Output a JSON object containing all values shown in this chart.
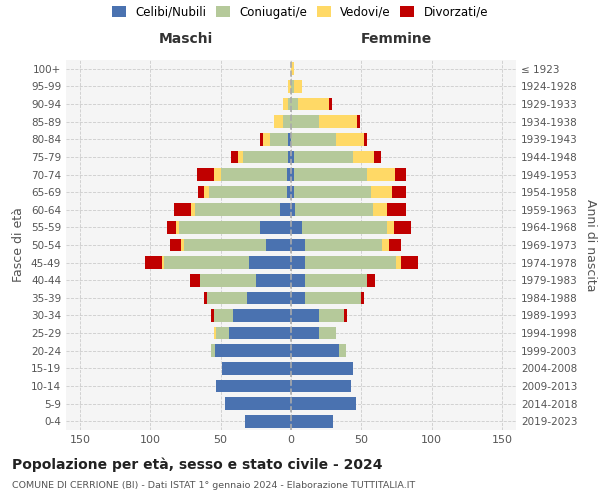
{
  "age_groups": [
    "0-4",
    "5-9",
    "10-14",
    "15-19",
    "20-24",
    "25-29",
    "30-34",
    "35-39",
    "40-44",
    "45-49",
    "50-54",
    "55-59",
    "60-64",
    "65-69",
    "70-74",
    "75-79",
    "80-84",
    "85-89",
    "90-94",
    "95-99",
    "100+"
  ],
  "birth_years": [
    "2019-2023",
    "2014-2018",
    "2009-2013",
    "2004-2008",
    "1999-2003",
    "1994-1998",
    "1989-1993",
    "1984-1988",
    "1979-1983",
    "1974-1978",
    "1969-1973",
    "1964-1968",
    "1959-1963",
    "1954-1958",
    "1949-1953",
    "1944-1948",
    "1939-1943",
    "1934-1938",
    "1929-1933",
    "1924-1928",
    "≤ 1923"
  ],
  "colors": {
    "celibe": "#4a72b0",
    "coniugato": "#b5c99a",
    "vedovo": "#ffd966",
    "divorziato": "#c00000"
  },
  "maschi": {
    "celibe": [
      33,
      47,
      53,
      49,
      54,
      44,
      41,
      31,
      25,
      30,
      18,
      22,
      8,
      3,
      3,
      2,
      2,
      0,
      0,
      0,
      0
    ],
    "coniugato": [
      0,
      0,
      0,
      0,
      3,
      9,
      14,
      29,
      40,
      60,
      58,
      58,
      60,
      55,
      47,
      32,
      13,
      6,
      2,
      0,
      0
    ],
    "vedovo": [
      0,
      0,
      0,
      0,
      0,
      2,
      0,
      0,
      0,
      2,
      2,
      2,
      3,
      4,
      5,
      4,
      5,
      6,
      4,
      2,
      0
    ],
    "divorziato": [
      0,
      0,
      0,
      0,
      0,
      0,
      2,
      2,
      7,
      12,
      8,
      6,
      12,
      4,
      12,
      5,
      2,
      0,
      0,
      0,
      0
    ]
  },
  "femmine": {
    "nubile": [
      30,
      46,
      43,
      44,
      34,
      20,
      20,
      10,
      10,
      10,
      10,
      8,
      3,
      2,
      2,
      2,
      0,
      0,
      0,
      0,
      0
    ],
    "coniugata": [
      0,
      0,
      0,
      0,
      5,
      12,
      18,
      40,
      44,
      65,
      55,
      60,
      55,
      55,
      52,
      42,
      32,
      20,
      5,
      2,
      0
    ],
    "vedova": [
      0,
      0,
      0,
      0,
      0,
      0,
      0,
      0,
      0,
      3,
      5,
      5,
      10,
      15,
      20,
      15,
      20,
      27,
      22,
      6,
      2
    ],
    "divorziata": [
      0,
      0,
      0,
      0,
      0,
      0,
      2,
      2,
      6,
      12,
      8,
      12,
      14,
      10,
      8,
      5,
      2,
      2,
      2,
      0,
      0
    ]
  },
  "title": "Popolazione per età, sesso e stato civile - 2024",
  "subtitle": "COMUNE DI CERRIONE (BI) - Dati ISTAT 1° gennaio 2024 - Elaborazione TUTTITALIA.IT",
  "xlabel_left": "Maschi",
  "xlabel_right": "Femmine",
  "ylabel_left": "Fasce di età",
  "ylabel_right": "Anni di nascita",
  "xlim": 160,
  "bg_color": "#f5f5f5",
  "grid_color": "#cccccc"
}
